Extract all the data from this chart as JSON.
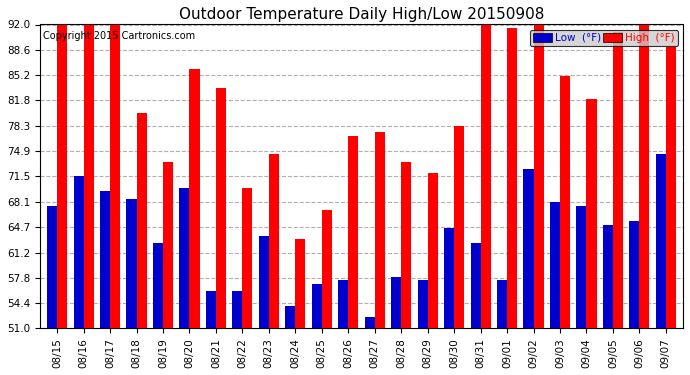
{
  "title": "Outdoor Temperature Daily High/Low 20150908",
  "copyright": "Copyright 2015 Cartronics.com",
  "dates": [
    "08/15",
    "08/16",
    "08/17",
    "08/18",
    "08/19",
    "08/20",
    "08/21",
    "08/22",
    "08/23",
    "08/24",
    "08/25",
    "08/26",
    "08/27",
    "08/28",
    "08/29",
    "08/30",
    "08/31",
    "09/01",
    "09/02",
    "09/03",
    "09/04",
    "09/05",
    "09/06",
    "09/07"
  ],
  "highs": [
    92.0,
    92.0,
    92.0,
    80.0,
    73.5,
    86.0,
    83.5,
    70.0,
    74.5,
    63.0,
    67.0,
    77.0,
    77.5,
    73.5,
    72.0,
    78.3,
    92.0,
    91.5,
    92.0,
    85.0,
    82.0,
    91.0,
    92.0,
    89.0
  ],
  "lows": [
    67.5,
    71.5,
    69.5,
    68.5,
    62.5,
    70.0,
    56.0,
    56.0,
    63.5,
    54.0,
    57.0,
    57.5,
    52.5,
    58.0,
    57.5,
    64.5,
    62.5,
    57.5,
    72.5,
    68.0,
    67.5,
    65.0,
    65.5,
    74.5
  ],
  "high_color": "#ff0000",
  "low_color": "#0000cc",
  "bg_color": "#ffffff",
  "plot_bg_color": "#ffffff",
  "grid_color": "#b0b0b0",
  "ylim": [
    51.0,
    92.0
  ],
  "yticks": [
    51.0,
    54.4,
    57.8,
    61.2,
    64.7,
    68.1,
    71.5,
    74.9,
    78.3,
    81.8,
    85.2,
    88.6,
    92.0
  ],
  "title_fontsize": 11,
  "copyright_fontsize": 7,
  "tick_fontsize": 7.5,
  "legend_low_label": "Low  (°F)",
  "legend_high_label": "High  (°F)"
}
